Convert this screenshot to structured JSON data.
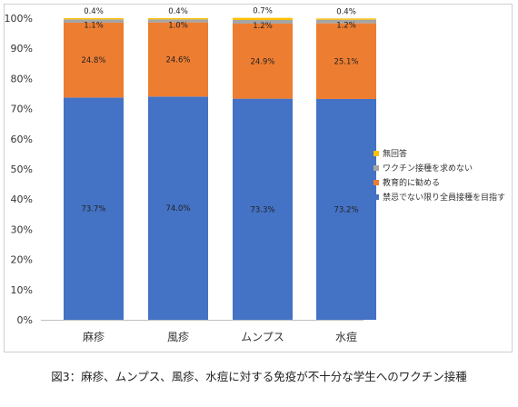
{
  "caption": "図3：麻疹、ムンプス、風疹、水痘に対する免疫が不十分な学生へのワクチン接種",
  "chart_data": {
    "type": "bar",
    "stacked": true,
    "categories": [
      "麻疹",
      "風疹",
      "ムンプス",
      "水痘"
    ],
    "series": [
      {
        "name": "禁忌でない限り全員接種を目指す",
        "color": "#4472C4",
        "values": [
          73.7,
          74.0,
          73.3,
          73.2
        ],
        "labels": [
          "73.7%",
          "74.0%",
          "73.3%",
          "73.2%"
        ]
      },
      {
        "name": "教育的に勧める",
        "color": "#ED7D31",
        "values": [
          24.8,
          24.6,
          24.9,
          25.1
        ],
        "labels": [
          "24.8%",
          "24.6%",
          "24.9%",
          "25.1%"
        ]
      },
      {
        "name": "ワクチン接種を求めない",
        "color": "#A5A5A5",
        "values": [
          1.1,
          1.0,
          1.2,
          1.2
        ],
        "labels": [
          "1.1%",
          "1.0%",
          "1.2%",
          "1.2%"
        ]
      },
      {
        "name": "無回答",
        "color": "#FFC000",
        "values": [
          0.4,
          0.4,
          0.7,
          0.4
        ],
        "labels": [
          "0.4%",
          "0.4%",
          "0.7%",
          "0.4%"
        ]
      }
    ],
    "yticks": [
      "0%",
      "10%",
      "20%",
      "30%",
      "40%",
      "50%",
      "60%",
      "70%",
      "80%",
      "90%",
      "100%"
    ],
    "ylim": [
      0,
      100
    ],
    "legend_position": "right",
    "legend_order": [
      3,
      2,
      1,
      0
    ],
    "grid": false
  }
}
